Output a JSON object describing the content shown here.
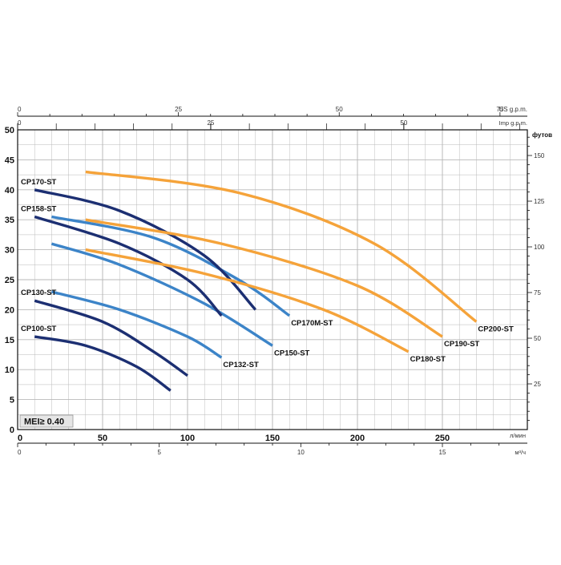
{
  "chart_data": {
    "type": "line",
    "x_units": {
      "lpm": "л/мин",
      "m3h": "м³/ч",
      "us_gpm": "US g.p.m.",
      "imp_gpm": "Imp g.p.m."
    },
    "y_units": {
      "m": "",
      "ft": "футов"
    },
    "xlim_lpm": [
      0,
      300
    ],
    "ylim_m": [
      0,
      50
    ],
    "grid": true,
    "x_ticks_lpm": [
      "0",
      "50",
      "100",
      "150",
      "200",
      "250"
    ],
    "x_ticks_m3h": [
      "0",
      "5",
      "10",
      "15"
    ],
    "x_ticks_us_gpm": [
      "0",
      "25",
      "50",
      "75"
    ],
    "x_ticks_imp_gpm": [
      "0",
      "25",
      "50"
    ],
    "y_ticks_m": [
      "0",
      "5",
      "10",
      "15",
      "20",
      "25",
      "30",
      "35",
      "40",
      "45",
      "50"
    ],
    "y_ticks_ft": [
      "25",
      "50",
      "75",
      "100",
      "125",
      "150"
    ],
    "annotation": "MEI≥ 0.40",
    "colors": {
      "dark": "#1c2f72",
      "mid": "#3c84c8",
      "orange": "#f5a33a",
      "grid": "#b9b9b9",
      "axis": "#111111"
    },
    "series": [
      {
        "name": "CP100-ST",
        "color": "dark",
        "label_pos": "start",
        "points": [
          [
            10,
            15.5
          ],
          [
            40,
            14
          ],
          [
            70,
            10.5
          ],
          [
            90,
            6.5
          ]
        ]
      },
      {
        "name": "CP130-ST",
        "color": "dark",
        "label_pos": "start",
        "points": [
          [
            10,
            21.5
          ],
          [
            50,
            18
          ],
          [
            80,
            13
          ],
          [
            100,
            9
          ]
        ]
      },
      {
        "name": "CP132-ST",
        "color": "mid",
        "label_pos": "end",
        "points": [
          [
            20,
            23
          ],
          [
            60,
            20
          ],
          [
            100,
            15.5
          ],
          [
            120,
            12
          ]
        ]
      },
      {
        "name": "CP150-ST",
        "color": "mid",
        "label_pos": "end",
        "points": [
          [
            20,
            31
          ],
          [
            60,
            27.5
          ],
          [
            110,
            21
          ],
          [
            150,
            14
          ]
        ]
      },
      {
        "name": "CP158-ST",
        "color": "dark",
        "label_pos": "start",
        "points": [
          [
            10,
            35.5
          ],
          [
            60,
            31
          ],
          [
            100,
            25
          ],
          [
            120,
            19
          ]
        ]
      },
      {
        "name": "CP170M-ST",
        "color": "mid",
        "label_pos": "end",
        "points": [
          [
            20,
            35.5
          ],
          [
            80,
            32
          ],
          [
            130,
            25
          ],
          [
            160,
            19
          ]
        ]
      },
      {
        "name": "CP170-ST",
        "color": "dark",
        "label_pos": "start",
        "points": [
          [
            10,
            40
          ],
          [
            60,
            36.5
          ],
          [
            110,
            29
          ],
          [
            140,
            20
          ]
        ]
      },
      {
        "name": "CP180-ST",
        "color": "orange",
        "label_pos": "end",
        "points": [
          [
            40,
            30
          ],
          [
            110,
            26
          ],
          [
            180,
            20
          ],
          [
            230,
            13
          ]
        ]
      },
      {
        "name": "CP190-ST",
        "color": "orange",
        "label_pos": "end",
        "points": [
          [
            40,
            35
          ],
          [
            120,
            31
          ],
          [
            200,
            24
          ],
          [
            250,
            15.5
          ]
        ]
      },
      {
        "name": "CP200-ST",
        "color": "orange",
        "label_pos": "end",
        "points": [
          [
            40,
            43
          ],
          [
            130,
            39.5
          ],
          [
            210,
            31
          ],
          [
            270,
            18
          ]
        ]
      }
    ]
  }
}
